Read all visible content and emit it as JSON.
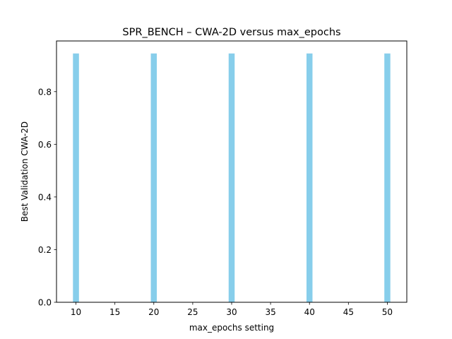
{
  "chart_data": {
    "type": "bar",
    "title": "SPR_BENCH – CWA-2D versus max_epochs",
    "xlabel": "max_epochs setting",
    "ylabel": "Best Validation CWA-2D",
    "x": [
      10,
      20,
      30,
      40,
      50
    ],
    "values": [
      0.945,
      0.945,
      0.945,
      0.945,
      0.945
    ],
    "xlim": [
      7.5,
      52.5
    ],
    "ylim": [
      0,
      0.9925
    ],
    "xticks": [
      10,
      15,
      20,
      25,
      30,
      35,
      40,
      45,
      50
    ],
    "yticks": [
      0.0,
      0.2,
      0.4,
      0.6,
      0.8
    ],
    "ytick_labels": [
      "0.0",
      "0.2",
      "0.4",
      "0.6",
      "0.8"
    ],
    "bar_color": "#87ceeb",
    "grid": false,
    "legend": false
  }
}
